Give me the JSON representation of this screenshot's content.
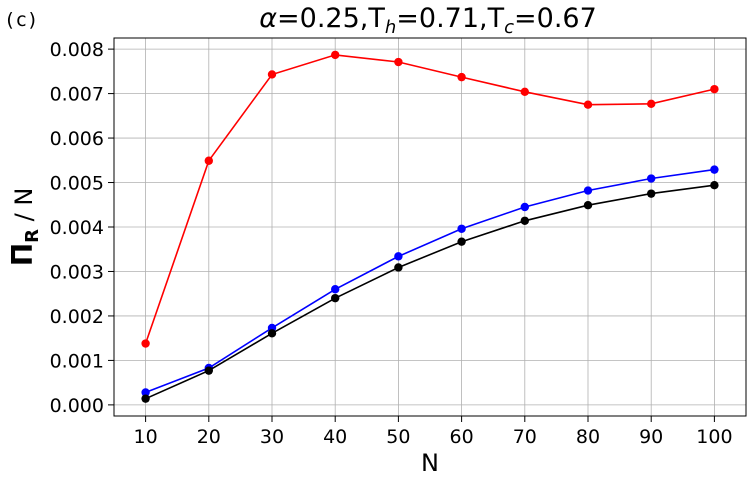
{
  "panel_label": "(c)",
  "chart_data": {
    "type": "line",
    "title": {
      "alpha_symbol": "α",
      "alpha_value": "=0.25,",
      "th_base": "T",
      "th_sub": "h",
      "th_value": "=0.71,",
      "tc_base": "T",
      "tc_sub": "c",
      "tc_value": "=0.67"
    },
    "xlabel": "N",
    "ylabel": {
      "symbol": "Π",
      "sub": "R",
      "rest": " / N"
    },
    "x": [
      10,
      20,
      30,
      40,
      50,
      60,
      70,
      80,
      90,
      100
    ],
    "xticks": [
      "10",
      "20",
      "30",
      "40",
      "50",
      "60",
      "70",
      "80",
      "90",
      "100"
    ],
    "yticks": [
      "0.000",
      "0.001",
      "0.002",
      "0.003",
      "0.004",
      "0.005",
      "0.006",
      "0.007",
      "0.008"
    ],
    "xlim": [
      5,
      105
    ],
    "ylim": [
      -0.00025,
      0.00825
    ],
    "grid": true,
    "series": [
      {
        "color": "#ff0000",
        "values": [
          0.00138,
          0.00549,
          0.00743,
          0.00787,
          0.00771,
          0.00737,
          0.00704,
          0.00675,
          0.00677,
          0.0071
        ]
      },
      {
        "color": "#0000ff",
        "values": [
          0.00028,
          0.00083,
          0.00173,
          0.0026,
          0.00334,
          0.00396,
          0.00445,
          0.00482,
          0.00509,
          0.00529
        ]
      },
      {
        "color": "#000000",
        "values": [
          0.00014,
          0.00077,
          0.00161,
          0.0024,
          0.00309,
          0.00367,
          0.00414,
          0.00449,
          0.00475,
          0.00494
        ]
      }
    ]
  }
}
